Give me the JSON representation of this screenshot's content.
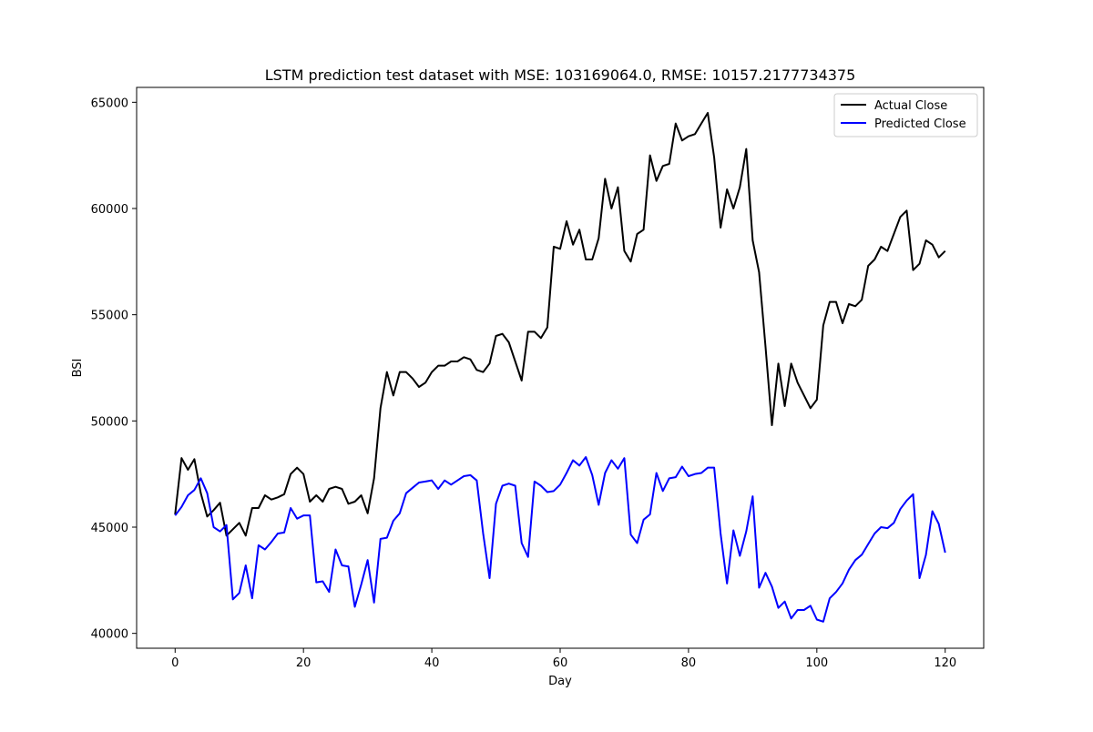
{
  "chart_data": {
    "type": "line",
    "title": "LSTM prediction test dataset with MSE: 103169064.0, RMSE: 10157.2177734375",
    "xlabel": "Day",
    "ylabel": "BSI",
    "xlim": [
      -6,
      126
    ],
    "ylim": [
      39300,
      65700
    ],
    "xticks": [
      0,
      20,
      40,
      60,
      80,
      100,
      120
    ],
    "yticks": [
      40000,
      45000,
      50000,
      55000,
      60000,
      65000
    ],
    "legend_position": "top-right",
    "grid": false,
    "series": [
      {
        "name": "Actual Close",
        "color": "#000000",
        "values": [
          45600,
          48250,
          47700,
          48200,
          46600,
          45500,
          45800,
          46150,
          44600,
          44900,
          45200,
          44600,
          45900,
          45900,
          46500,
          46300,
          46400,
          46550,
          47500,
          47800,
          47500,
          46200,
          46500,
          46200,
          46800,
          46900,
          46800,
          46100,
          46200,
          46500,
          45650,
          47300,
          50600,
          52300,
          51200,
          52300,
          52300,
          52000,
          51600,
          51800,
          52300,
          52600,
          52600,
          52800,
          52800,
          53000,
          52900,
          52400,
          52300,
          52700,
          54000,
          54100,
          53700,
          52800,
          51900,
          54200,
          54200,
          53900,
          54400,
          58200,
          58100,
          59400,
          58300,
          59000,
          57600,
          57600,
          58600,
          61400,
          60000,
          61000,
          58000,
          57500,
          58800,
          59000,
          62500,
          61300,
          62000,
          62100,
          64000,
          63200,
          63400,
          63500,
          64000,
          64500,
          62400,
          59100,
          60900,
          60000,
          61000,
          62800,
          58500,
          57000,
          53500,
          49800,
          52700,
          50700,
          52700,
          51800,
          51200,
          50600,
          51000,
          54500,
          55600,
          55600,
          54600,
          55500,
          55400,
          55700,
          57300,
          57600,
          58200,
          58000,
          58800,
          59600,
          59900,
          57100,
          57400,
          58500,
          58300,
          57700,
          58000
        ]
      },
      {
        "name": "Predicted Close",
        "color": "#0000ff",
        "values": [
          45550,
          45950,
          46500,
          46750,
          47300,
          46600,
          45000,
          44800,
          45100,
          41600,
          41900,
          43200,
          41650,
          44150,
          43950,
          44300,
          44700,
          44750,
          45900,
          45400,
          45550,
          45550,
          42400,
          42450,
          41950,
          43950,
          43200,
          43150,
          41250,
          42300,
          43450,
          41450,
          44450,
          44500,
          45300,
          45650,
          46600,
          46850,
          47100,
          47150,
          47200,
          46800,
          47200,
          47000,
          47200,
          47400,
          47450,
          47200,
          44700,
          42600,
          46100,
          46950,
          47050,
          46950,
          44250,
          43600,
          47150,
          46950,
          46650,
          46700,
          47000,
          47550,
          48150,
          47900,
          48300,
          47450,
          46050,
          47550,
          48150,
          47750,
          48250,
          44650,
          44250,
          45350,
          45600,
          47550,
          46700,
          47300,
          47350,
          47850,
          47400,
          47500,
          47550,
          47800,
          47800,
          44700,
          42350,
          44850,
          43650,
          44800,
          46450,
          42150,
          42850,
          42200,
          41200,
          41500,
          40700,
          41100,
          41100,
          41300,
          40650,
          40550,
          41650,
          41950,
          42350,
          43000,
          43450,
          43700,
          44200,
          44700,
          45000,
          44950,
          45200,
          45850,
          46250,
          46550,
          42600,
          43700,
          45750,
          45150,
          43800
        ]
      }
    ]
  }
}
